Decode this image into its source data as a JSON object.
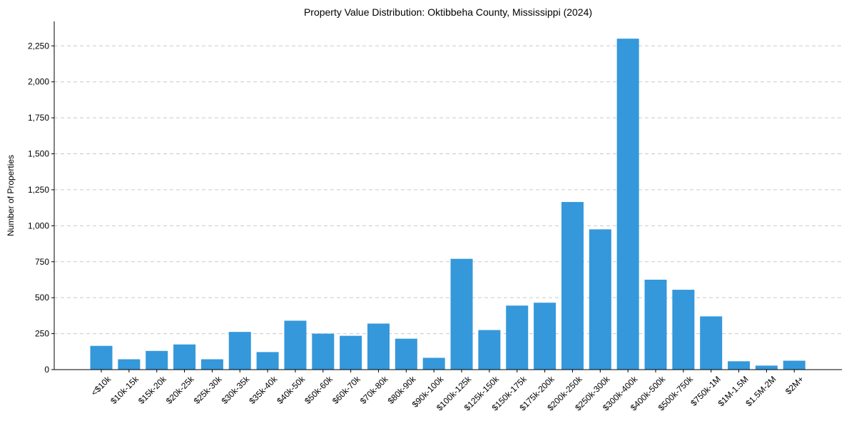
{
  "chart_data": {
    "type": "bar",
    "title": "Property Value Distribution: Oktibbeha County, Mississippi (2024)",
    "xlabel": "",
    "ylabel": "Number of Properties",
    "categories": [
      "<$10k",
      "$10k-15k",
      "$15k-20k",
      "$20k-25k",
      "$25k-30k",
      "$30k-35k",
      "$35k-40k",
      "$40k-50k",
      "$50k-60k",
      "$60k-70k",
      "$70k-80k",
      "$80k-90k",
      "$90k-100k",
      "$100k-125k",
      "$125k-150k",
      "$150k-175k",
      "$175k-200k",
      "$200k-250k",
      "$250k-300k",
      "$300k-400k",
      "$400k-500k",
      "$500k-750k",
      "$750k-1M",
      "$1M-1.5M",
      "$1.5M-2M",
      "$2M+"
    ],
    "values": [
      165,
      72,
      130,
      175,
      72,
      262,
      122,
      340,
      250,
      235,
      320,
      215,
      82,
      770,
      275,
      445,
      465,
      1165,
      975,
      2300,
      625,
      555,
      370,
      58,
      28,
      62
    ],
    "ylim": [
      0,
      2420
    ],
    "yticks": [
      0,
      250,
      500,
      750,
      1000,
      1250,
      1500,
      1750,
      2000,
      2250
    ],
    "ytick_labels": [
      "0",
      "250",
      "500",
      "750",
      "1,000",
      "1,250",
      "1,500",
      "1,750",
      "2,000",
      "2,250"
    ],
    "grid": "y-dashed",
    "bar_color": "#3498db"
  }
}
